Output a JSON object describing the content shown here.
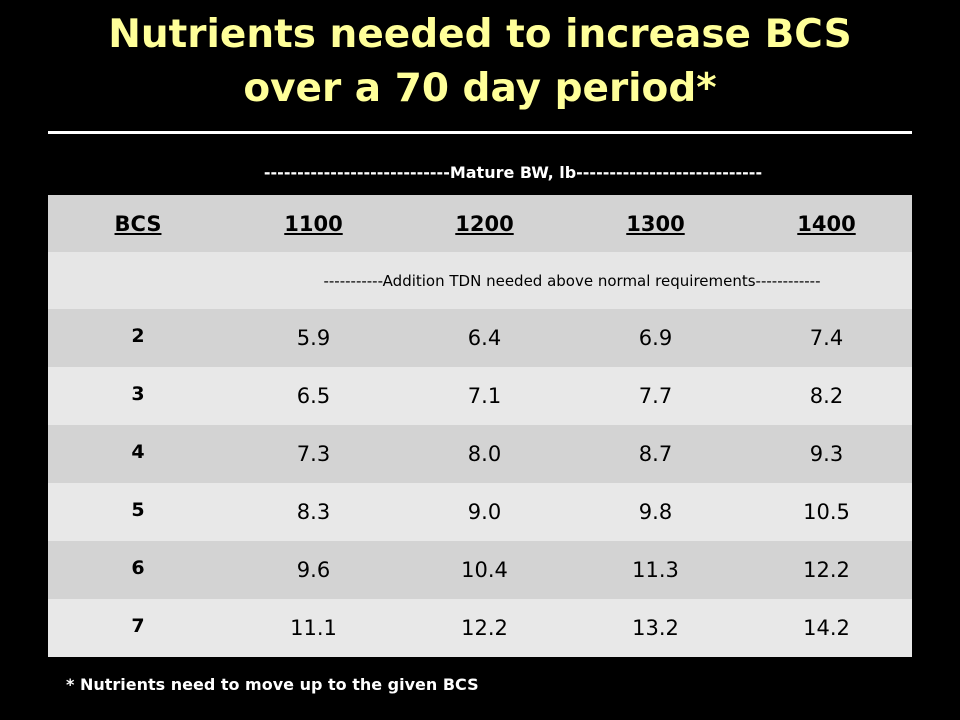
{
  "slide": {
    "title_line1": "Nutrients needed to increase BCS",
    "title_line2": "over a 70 day period*",
    "span_label": "----------------------------Mature BW, lb----------------------------",
    "footnote": "* Nutrients need to move up to the given BCS"
  },
  "table": {
    "headers": [
      "BCS",
      "1100",
      "1200",
      "1300",
      "1400"
    ],
    "subheader": "-----------Addition TDN needed above normal requirements------------",
    "rows": [
      {
        "bcs": "2",
        "values": [
          "5.9",
          "6.4",
          "6.9",
          "7.4"
        ]
      },
      {
        "bcs": "3",
        "values": [
          "6.5",
          "7.1",
          "7.7",
          "8.2"
        ]
      },
      {
        "bcs": "4",
        "values": [
          "7.3",
          "8.0",
          "8.7",
          "9.3"
        ]
      },
      {
        "bcs": "5",
        "values": [
          "8.3",
          "9.0",
          "9.8",
          "10.5"
        ]
      },
      {
        "bcs": "6",
        "values": [
          "9.6",
          "10.4",
          "11.3",
          "12.2"
        ]
      },
      {
        "bcs": "7",
        "values": [
          "11.1",
          "12.2",
          "13.2",
          "14.2"
        ]
      }
    ]
  },
  "colors": {
    "background": "#000000",
    "title": "#ffff99",
    "text_light": "#ffffff",
    "row_dark": "#d3d3d3",
    "row_light": "#e8e8e8"
  }
}
